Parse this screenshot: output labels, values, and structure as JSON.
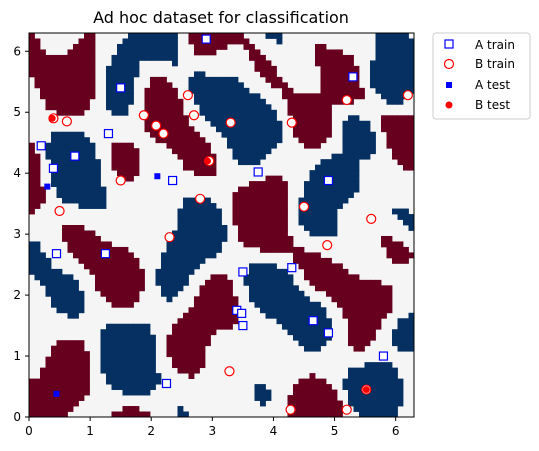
{
  "chart_data": {
    "type": "scatter",
    "title": "Ad hoc dataset for classification",
    "xlim": [
      0,
      6.3
    ],
    "ylim": [
      0,
      6.3
    ],
    "x_ticks": [
      0,
      1,
      2,
      3,
      4,
      5,
      6
    ],
    "y_ticks": [
      0,
      1,
      2,
      3,
      4,
      5,
      6
    ],
    "background": {
      "description": "class-region map",
      "colors": {
        "class_A": "#053061",
        "class_B": "#67001f",
        "neutral": "#f5f5f5"
      }
    },
    "legend_position": "outside-right-top",
    "series": [
      {
        "name": "A train",
        "marker": "square-open",
        "color": "#0000ff",
        "points": [
          [
            0.2,
            4.45
          ],
          [
            0.4,
            4.08
          ],
          [
            0.75,
            4.28
          ],
          [
            1.3,
            4.65
          ],
          [
            1.5,
            5.4
          ],
          [
            2.35,
            3.88
          ],
          [
            2.9,
            6.2
          ],
          [
            3.75,
            4.02
          ],
          [
            4.9,
            3.88
          ],
          [
            5.3,
            5.58
          ],
          [
            0.45,
            2.68
          ],
          [
            1.25,
            2.68
          ],
          [
            3.5,
            2.38
          ],
          [
            4.3,
            2.45
          ],
          [
            3.4,
            1.75
          ],
          [
            3.48,
            1.7
          ],
          [
            3.5,
            1.5
          ],
          [
            4.65,
            1.58
          ],
          [
            4.9,
            1.38
          ],
          [
            5.8,
            1.0
          ],
          [
            2.25,
            0.55
          ]
        ]
      },
      {
        "name": "B train",
        "marker": "circle-open",
        "color": "#ff0000",
        "points": [
          [
            0.4,
            4.9
          ],
          [
            0.62,
            4.85
          ],
          [
            1.5,
            3.88
          ],
          [
            1.88,
            4.95
          ],
          [
            2.08,
            4.78
          ],
          [
            2.2,
            4.65
          ],
          [
            2.6,
            5.28
          ],
          [
            2.7,
            4.95
          ],
          [
            3.3,
            4.83
          ],
          [
            2.95,
            4.2
          ],
          [
            2.8,
            3.58
          ],
          [
            4.3,
            4.83
          ],
          [
            5.2,
            5.2
          ],
          [
            6.2,
            5.28
          ],
          [
            0.5,
            3.38
          ],
          [
            2.3,
            2.95
          ],
          [
            4.5,
            3.45
          ],
          [
            5.6,
            3.25
          ],
          [
            4.88,
            2.82
          ],
          [
            3.28,
            0.75
          ],
          [
            4.28,
            0.12
          ],
          [
            5.2,
            0.12
          ],
          [
            5.52,
            0.45
          ]
        ]
      },
      {
        "name": "A test",
        "marker": "square-filled",
        "color": "#0000ff",
        "points": [
          [
            0.3,
            3.78
          ],
          [
            2.1,
            3.95
          ],
          [
            0.45,
            0.38
          ]
        ]
      },
      {
        "name": "B test",
        "marker": "circle-filled",
        "color": "#ff0000",
        "points": [
          [
            0.38,
            4.9
          ],
          [
            2.92,
            4.2
          ],
          [
            5.52,
            0.45
          ]
        ]
      }
    ]
  }
}
